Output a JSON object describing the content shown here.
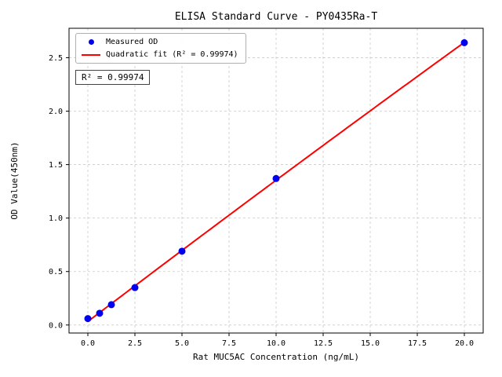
{
  "chart_data": {
    "type": "scatter",
    "title": "ELISA Standard Curve - PY0435Ra-T",
    "xlabel": "Rat MUC5AC Concentration (ng/mL)",
    "ylabel": "OD Value(450nm)",
    "x_ticks": [
      "0.0",
      "2.5",
      "5.0",
      "7.5",
      "10.0",
      "12.5",
      "15.0",
      "17.5",
      "20.0"
    ],
    "y_ticks": [
      "0.0",
      "0.5",
      "1.0",
      "1.5",
      "2.0",
      "2.5"
    ],
    "xlim": [
      -1,
      21
    ],
    "ylim": [
      -0.075,
      2.775
    ],
    "grid": true,
    "grid_style": "dashed",
    "legend_position": "upper left",
    "annotation": "R² = 0.99974",
    "colors": {
      "points": "#0000ee",
      "fit_line": "#ff0000",
      "grid": "#c9c9c9",
      "frame": "#000000"
    },
    "series": [
      {
        "name": "Measured OD",
        "type": "scatter",
        "color": "#0000ee",
        "x": [
          0,
          0.625,
          1.25,
          2.5,
          5,
          10,
          20
        ],
        "y": [
          0.06,
          0.11,
          0.19,
          0.35,
          0.69,
          1.37,
          2.64
        ]
      },
      {
        "name": "Quadratic fit (R² = 0.99974)",
        "type": "line",
        "color": "#ff0000",
        "fit": "quadratic",
        "fit_of": "Measured OD",
        "x_range": [
          0,
          20
        ]
      }
    ]
  }
}
